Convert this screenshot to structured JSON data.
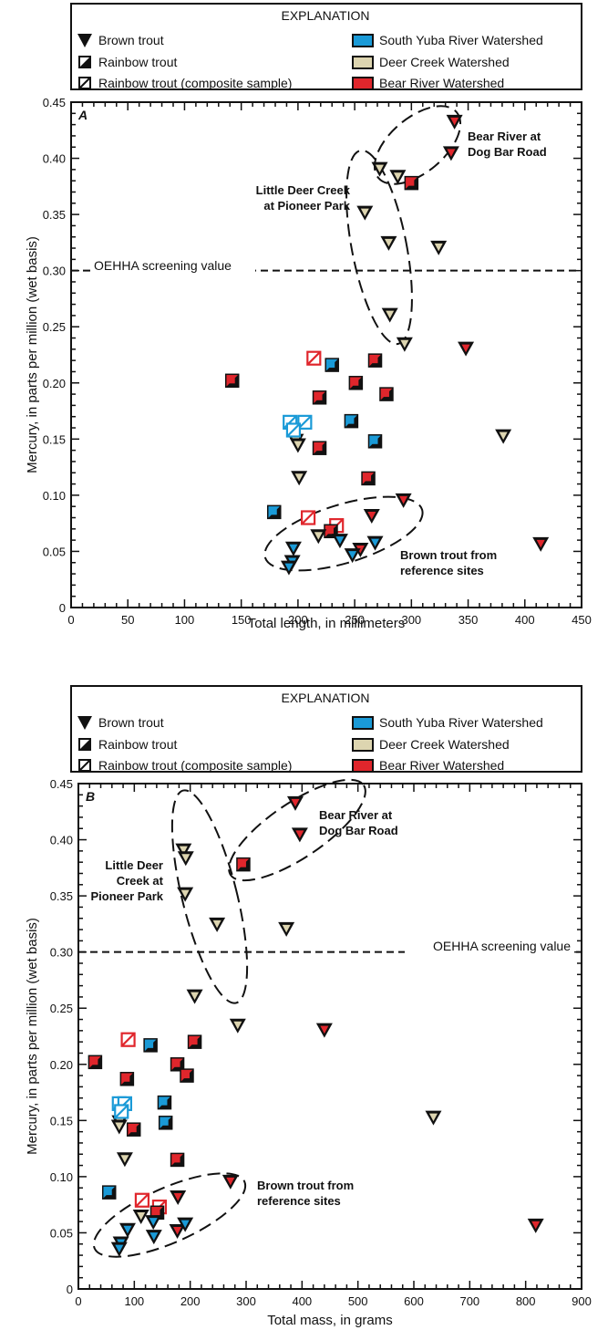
{
  "legend": {
    "title": "EXPLANATION",
    "brown_trout": "Brown trout",
    "rainbow_trout": "Rainbow trout",
    "rainbow_composite": "Rainbow trout (composite sample)",
    "south_yuba": "South Yuba River Watershed",
    "deer_creek": "Deer Creek Watershed",
    "bear_river": "Bear River Watershed"
  },
  "colors": {
    "south_yuba": "#1a9ad7",
    "deer_creek": "#ddd5b0",
    "bear_river": "#e0262c",
    "ink": "#111111"
  },
  "annotations": {
    "screening": "OEHHA screening value",
    "bear_dog_bar_1": "Bear River at",
    "bear_dog_bar_2": "Dog Bar Road",
    "ldc_a_1": "Little Deer Creek",
    "ldc_a_2": "at Pioneer Park",
    "ldc_b_1": "Little Deer",
    "ldc_b_2": "Creek at",
    "ldc_b_3": "Pioneer Park",
    "brown_ref_1": "Brown trout from",
    "brown_ref_2": "reference sites"
  },
  "chart_data": [
    {
      "type": "scatter",
      "panel": "A",
      "xlabel": "Total length, in millimeters",
      "ylabel": "Mercury, in parts per million (wet basis)",
      "xlim": [
        0,
        450
      ],
      "ylim": [
        0,
        0.45
      ],
      "xticks": [
        0,
        50,
        100,
        150,
        200,
        250,
        300,
        350,
        400,
        450
      ],
      "yticks": [
        0,
        0.05,
        0.1,
        0.15,
        0.2,
        0.25,
        0.3,
        0.35,
        0.4,
        0.45
      ],
      "ytick_labels": [
        "0",
        "0.05",
        "0.10",
        "0.15",
        "0.20",
        "0.25",
        "0.30",
        "0.35",
        "0.40",
        "0.45"
      ],
      "screening_value": 0.3,
      "points": [
        {
          "x": 338,
          "y": 0.433,
          "species": "brown",
          "watershed": "bear"
        },
        {
          "x": 335,
          "y": 0.405,
          "species": "brown",
          "watershed": "bear"
        },
        {
          "x": 300,
          "y": 0.378,
          "species": "rainbow",
          "watershed": "bear"
        },
        {
          "x": 348,
          "y": 0.231,
          "species": "brown",
          "watershed": "bear"
        },
        {
          "x": 414,
          "y": 0.057,
          "species": "brown",
          "watershed": "bear"
        },
        {
          "x": 293,
          "y": 0.096,
          "species": "brown",
          "watershed": "bear"
        },
        {
          "x": 265,
          "y": 0.082,
          "species": "brown",
          "watershed": "bear"
        },
        {
          "x": 255,
          "y": 0.052,
          "species": "brown",
          "watershed": "bear"
        },
        {
          "x": 142,
          "y": 0.202,
          "species": "rainbow",
          "watershed": "bear"
        },
        {
          "x": 214,
          "y": 0.222,
          "species": "composite",
          "watershed": "bear"
        },
        {
          "x": 268,
          "y": 0.22,
          "species": "rainbow",
          "watershed": "bear"
        },
        {
          "x": 251,
          "y": 0.2,
          "species": "rainbow",
          "watershed": "bear"
        },
        {
          "x": 278,
          "y": 0.19,
          "species": "rainbow",
          "watershed": "bear"
        },
        {
          "x": 219,
          "y": 0.187,
          "species": "rainbow",
          "watershed": "bear"
        },
        {
          "x": 219,
          "y": 0.142,
          "species": "rainbow",
          "watershed": "bear"
        },
        {
          "x": 262,
          "y": 0.115,
          "species": "rainbow",
          "watershed": "bear"
        },
        {
          "x": 209,
          "y": 0.08,
          "species": "composite",
          "watershed": "bear"
        },
        {
          "x": 234,
          "y": 0.073,
          "species": "composite",
          "watershed": "bear"
        },
        {
          "x": 229,
          "y": 0.068,
          "species": "rainbow",
          "watershed": "bear"
        },
        {
          "x": 272,
          "y": 0.391,
          "species": "brown",
          "watershed": "deer"
        },
        {
          "x": 288,
          "y": 0.384,
          "species": "brown",
          "watershed": "deer"
        },
        {
          "x": 259,
          "y": 0.352,
          "species": "brown",
          "watershed": "deer"
        },
        {
          "x": 280,
          "y": 0.325,
          "species": "brown",
          "watershed": "deer"
        },
        {
          "x": 324,
          "y": 0.321,
          "species": "brown",
          "watershed": "deer"
        },
        {
          "x": 281,
          "y": 0.261,
          "species": "brown",
          "watershed": "deer"
        },
        {
          "x": 294,
          "y": 0.235,
          "species": "brown",
          "watershed": "deer"
        },
        {
          "x": 381,
          "y": 0.153,
          "species": "brown",
          "watershed": "deer"
        },
        {
          "x": 198,
          "y": 0.149,
          "species": "brown",
          "watershed": "deer"
        },
        {
          "x": 200,
          "y": 0.145,
          "species": "brown",
          "watershed": "deer"
        },
        {
          "x": 201,
          "y": 0.116,
          "species": "brown",
          "watershed": "deer"
        },
        {
          "x": 218,
          "y": 0.064,
          "species": "brown",
          "watershed": "deer"
        },
        {
          "x": 230,
          "y": 0.216,
          "species": "rainbow",
          "watershed": "yuba"
        },
        {
          "x": 193,
          "y": 0.165,
          "species": "composite",
          "watershed": "yuba"
        },
        {
          "x": 206,
          "y": 0.165,
          "species": "composite",
          "watershed": "yuba"
        },
        {
          "x": 196,
          "y": 0.158,
          "species": "composite",
          "watershed": "yuba"
        },
        {
          "x": 247,
          "y": 0.166,
          "species": "rainbow",
          "watershed": "yuba"
        },
        {
          "x": 268,
          "y": 0.148,
          "species": "rainbow",
          "watershed": "yuba"
        },
        {
          "x": 179,
          "y": 0.085,
          "species": "rainbow",
          "watershed": "yuba"
        },
        {
          "x": 196,
          "y": 0.053,
          "species": "brown",
          "watershed": "yuba"
        },
        {
          "x": 195,
          "y": 0.041,
          "species": "brown",
          "watershed": "yuba"
        },
        {
          "x": 192,
          "y": 0.036,
          "species": "brown",
          "watershed": "yuba"
        },
        {
          "x": 237,
          "y": 0.06,
          "species": "brown",
          "watershed": "yuba"
        },
        {
          "x": 248,
          "y": 0.047,
          "species": "brown",
          "watershed": "yuba"
        },
        {
          "x": 268,
          "y": 0.058,
          "species": "brown",
          "watershed": "yuba"
        }
      ]
    },
    {
      "type": "scatter",
      "panel": "B",
      "xlabel": "Total mass, in grams",
      "ylabel": "Mercury, in parts per million (wet basis)",
      "xlim": [
        0,
        900
      ],
      "ylim": [
        0,
        0.45
      ],
      "xticks": [
        0,
        100,
        200,
        300,
        400,
        500,
        600,
        700,
        800,
        900
      ],
      "yticks": [
        0,
        0.05,
        0.1,
        0.15,
        0.2,
        0.25,
        0.3,
        0.35,
        0.4,
        0.45
      ],
      "ytick_labels": [
        "0",
        "0.05",
        "0.10",
        "0.15",
        "0.20",
        "0.25",
        "0.30",
        "0.35",
        "0.40",
        "0.45"
      ],
      "screening_value": 0.3,
      "points": [
        {
          "x": 388,
          "y": 0.433,
          "species": "brown",
          "watershed": "bear"
        },
        {
          "x": 396,
          "y": 0.405,
          "species": "brown",
          "watershed": "bear"
        },
        {
          "x": 295,
          "y": 0.378,
          "species": "rainbow",
          "watershed": "bear"
        },
        {
          "x": 440,
          "y": 0.231,
          "species": "brown",
          "watershed": "bear"
        },
        {
          "x": 818,
          "y": 0.057,
          "species": "brown",
          "watershed": "bear"
        },
        {
          "x": 272,
          "y": 0.096,
          "species": "brown",
          "watershed": "bear"
        },
        {
          "x": 178,
          "y": 0.082,
          "species": "brown",
          "watershed": "bear"
        },
        {
          "x": 177,
          "y": 0.052,
          "species": "brown",
          "watershed": "bear"
        },
        {
          "x": 30,
          "y": 0.202,
          "species": "rainbow",
          "watershed": "bear"
        },
        {
          "x": 89,
          "y": 0.222,
          "species": "composite",
          "watershed": "bear"
        },
        {
          "x": 208,
          "y": 0.22,
          "species": "rainbow",
          "watershed": "bear"
        },
        {
          "x": 177,
          "y": 0.2,
          "species": "rainbow",
          "watershed": "bear"
        },
        {
          "x": 194,
          "y": 0.19,
          "species": "rainbow",
          "watershed": "bear"
        },
        {
          "x": 87,
          "y": 0.187,
          "species": "rainbow",
          "watershed": "bear"
        },
        {
          "x": 99,
          "y": 0.142,
          "species": "rainbow",
          "watershed": "bear"
        },
        {
          "x": 177,
          "y": 0.115,
          "species": "rainbow",
          "watershed": "bear"
        },
        {
          "x": 114,
          "y": 0.079,
          "species": "composite",
          "watershed": "bear"
        },
        {
          "x": 145,
          "y": 0.073,
          "species": "composite",
          "watershed": "bear"
        },
        {
          "x": 141,
          "y": 0.068,
          "species": "rainbow",
          "watershed": "bear"
        },
        {
          "x": 188,
          "y": 0.391,
          "species": "brown",
          "watershed": "deer"
        },
        {
          "x": 192,
          "y": 0.384,
          "species": "brown",
          "watershed": "deer"
        },
        {
          "x": 191,
          "y": 0.352,
          "species": "brown",
          "watershed": "deer"
        },
        {
          "x": 248,
          "y": 0.325,
          "species": "brown",
          "watershed": "deer"
        },
        {
          "x": 372,
          "y": 0.321,
          "species": "brown",
          "watershed": "deer"
        },
        {
          "x": 208,
          "y": 0.261,
          "species": "brown",
          "watershed": "deer"
        },
        {
          "x": 285,
          "y": 0.235,
          "species": "brown",
          "watershed": "deer"
        },
        {
          "x": 635,
          "y": 0.153,
          "species": "brown",
          "watershed": "deer"
        },
        {
          "x": 74,
          "y": 0.149,
          "species": "brown",
          "watershed": "deer"
        },
        {
          "x": 73,
          "y": 0.145,
          "species": "brown",
          "watershed": "deer"
        },
        {
          "x": 83,
          "y": 0.116,
          "species": "brown",
          "watershed": "deer"
        },
        {
          "x": 112,
          "y": 0.065,
          "species": "brown",
          "watershed": "deer"
        },
        {
          "x": 129,
          "y": 0.217,
          "species": "rainbow",
          "watershed": "yuba"
        },
        {
          "x": 73,
          "y": 0.165,
          "species": "composite",
          "watershed": "yuba"
        },
        {
          "x": 83,
          "y": 0.165,
          "species": "composite",
          "watershed": "yuba"
        },
        {
          "x": 77,
          "y": 0.158,
          "species": "composite",
          "watershed": "yuba"
        },
        {
          "x": 154,
          "y": 0.166,
          "species": "rainbow",
          "watershed": "yuba"
        },
        {
          "x": 156,
          "y": 0.148,
          "species": "rainbow",
          "watershed": "yuba"
        },
        {
          "x": 55,
          "y": 0.086,
          "species": "rainbow",
          "watershed": "yuba"
        },
        {
          "x": 88,
          "y": 0.053,
          "species": "brown",
          "watershed": "yuba"
        },
        {
          "x": 76,
          "y": 0.041,
          "species": "brown",
          "watershed": "yuba"
        },
        {
          "x": 73,
          "y": 0.036,
          "species": "brown",
          "watershed": "yuba"
        },
        {
          "x": 134,
          "y": 0.06,
          "species": "brown",
          "watershed": "yuba"
        },
        {
          "x": 135,
          "y": 0.047,
          "species": "brown",
          "watershed": "yuba"
        },
        {
          "x": 191,
          "y": 0.058,
          "species": "brown",
          "watershed": "yuba"
        }
      ]
    }
  ]
}
